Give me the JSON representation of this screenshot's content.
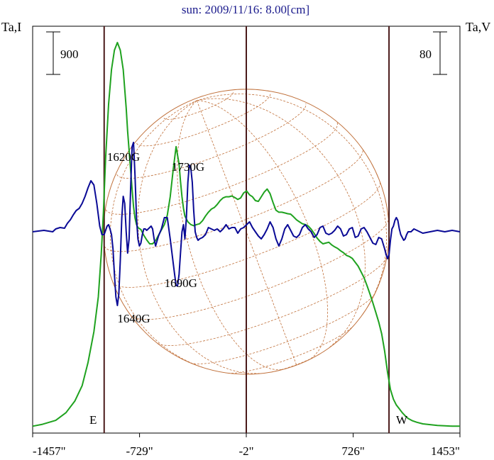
{
  "chart_data": {
    "type": "line",
    "title": "sun: 2009/11/16: 8.00[cm]",
    "ylabel_left": "Ta,I",
    "ylabel_right": "Ta,V",
    "scale_left": "900",
    "scale_right": "80",
    "limb_labels": [
      "E",
      "W"
    ],
    "xlim": [
      -1457,
      1453
    ],
    "x_ticks": [
      {
        "value": -1457,
        "label": "-1457\""
      },
      {
        "value": -729,
        "label": "-729\""
      },
      {
        "value": -2,
        "label": "-2\""
      },
      {
        "value": 726,
        "label": "726\""
      },
      {
        "value": 1453,
        "label": "1453\""
      }
    ],
    "limb_lines": [
      -970,
      -2,
      970
    ],
    "annotations": [
      {
        "text": "1620G",
        "x": -950,
        "y_value": 0.5
      },
      {
        "text": "1730G",
        "x": -510,
        "y_value": 0.43
      },
      {
        "text": "1690G",
        "x": -560,
        "y_value": -0.39
      },
      {
        "text": "1640G",
        "x": -880,
        "y_value": -0.64
      }
    ],
    "series": [
      {
        "name": "I",
        "color": "#1fa21f",
        "x": [
          -1457,
          -1390,
          -1300,
          -1230,
          -1170,
          -1120,
          -1080,
          -1040,
          -1010,
          -990,
          -975,
          -960,
          -940,
          -920,
          -900,
          -880,
          -860,
          -840,
          -820,
          -810,
          -800,
          -790,
          -780,
          -770,
          -760,
          -750,
          -740,
          -720,
          -700,
          -680,
          -660,
          -640,
          -620,
          -600,
          -580,
          -560,
          -540,
          -520,
          -500,
          -480,
          -460,
          -450,
          -440,
          -430,
          -420,
          -400,
          -380,
          -360,
          -340,
          -320,
          -300,
          -280,
          -260,
          -240,
          -220,
          -200,
          -180,
          -160,
          -140,
          -120,
          -100,
          -80,
          -60,
          -40,
          -20,
          0,
          20,
          40,
          60,
          80,
          100,
          120,
          140,
          160,
          180,
          200,
          220,
          240,
          260,
          280,
          300,
          320,
          340,
          360,
          380,
          400,
          420,
          440,
          460,
          480,
          500,
          520,
          540,
          560,
          580,
          600,
          620,
          640,
          660,
          680,
          700,
          720,
          740,
          760,
          780,
          800,
          820,
          840,
          860,
          880,
          900,
          920,
          940,
          960,
          980,
          1000,
          1020,
          1040,
          1060,
          1080,
          1100,
          1130,
          1160,
          1200,
          1250,
          1300,
          1350,
          1400,
          1453
        ],
        "values": [
          0.005,
          0.01,
          0.02,
          0.04,
          0.07,
          0.11,
          0.17,
          0.25,
          0.34,
          0.45,
          0.56,
          0.7,
          0.84,
          0.93,
          0.98,
          1.0,
          0.98,
          0.93,
          0.83,
          0.77,
          0.72,
          0.67,
          0.62,
          0.575,
          0.545,
          0.528,
          0.52,
          0.515,
          0.5,
          0.488,
          0.478,
          0.478,
          0.486,
          0.5,
          0.514,
          0.528,
          0.552,
          0.6,
          0.67,
          0.73,
          0.685,
          0.64,
          0.6,
          0.57,
          0.55,
          0.535,
          0.528,
          0.525,
          0.528,
          0.53,
          0.538,
          0.55,
          0.56,
          0.568,
          0.572,
          0.58,
          0.59,
          0.597,
          0.6,
          0.6,
          0.602,
          0.598,
          0.593,
          0.597,
          0.61,
          0.615,
          0.605,
          0.6,
          0.59,
          0.588,
          0.6,
          0.612,
          0.62,
          0.608,
          0.585,
          0.565,
          0.56,
          0.56,
          0.558,
          0.556,
          0.555,
          0.548,
          0.54,
          0.535,
          0.53,
          0.528,
          0.524,
          0.516,
          0.505,
          0.493,
          0.484,
          0.478,
          0.48,
          0.482,
          0.475,
          0.47,
          0.466,
          0.46,
          0.455,
          0.448,
          0.445,
          0.44,
          0.43,
          0.42,
          0.405,
          0.39,
          0.37,
          0.348,
          0.325,
          0.3,
          0.275,
          0.245,
          0.2,
          0.145,
          0.1,
          0.075,
          0.06,
          0.05,
          0.04,
          0.032,
          0.025,
          0.019,
          0.015,
          0.011,
          0.009,
          0.007,
          0.006,
          0.005,
          0.005
        ]
      },
      {
        "name": "V",
        "color": "#0a0a96",
        "x": [
          -1457,
          -1380,
          -1320,
          -1300,
          -1270,
          -1240,
          -1220,
          -1200,
          -1180,
          -1160,
          -1140,
          -1120,
          -1100,
          -1080,
          -1060,
          -1040,
          -1020,
          -1000,
          -985,
          -970,
          -960,
          -950,
          -940,
          -930,
          -920,
          -910,
          -900,
          -890,
          -880,
          -870,
          -860,
          -850,
          -840,
          -830,
          -820,
          -810,
          -800,
          -790,
          -780,
          -770,
          -760,
          -750,
          -740,
          -730,
          -720,
          -710,
          -700,
          -690,
          -680,
          -670,
          -660,
          -650,
          -640,
          -630,
          -620,
          -600,
          -580,
          -560,
          -540,
          -520,
          -500,
          -490,
          -480,
          -470,
          -460,
          -450,
          -440,
          -430,
          -420,
          -410,
          -400,
          -390,
          -380,
          -370,
          -360,
          -350,
          -340,
          -330,
          -320,
          -300,
          -280,
          -260,
          -240,
          -220,
          -200,
          -180,
          -160,
          -140,
          -120,
          -100,
          -80,
          -60,
          -40,
          -20,
          0,
          20,
          40,
          60,
          80,
          100,
          120,
          140,
          160,
          180,
          200,
          220,
          240,
          260,
          280,
          300,
          320,
          340,
          360,
          380,
          400,
          420,
          440,
          460,
          480,
          500,
          520,
          540,
          560,
          580,
          600,
          620,
          640,
          660,
          680,
          700,
          720,
          740,
          760,
          780,
          800,
          820,
          840,
          860,
          880,
          900,
          920,
          940,
          950,
          960,
          970,
          980,
          990,
          1000,
          1010,
          1020,
          1030,
          1040,
          1050,
          1060,
          1070,
          1080,
          1090,
          1100,
          1120,
          1140,
          1160,
          1180,
          1200,
          1250,
          1300,
          1350,
          1400,
          1453
        ],
        "values": [
          0.0,
          0.01,
          0.0,
          0.02,
          0.03,
          0.025,
          0.06,
          0.085,
          0.12,
          0.15,
          0.165,
          0.2,
          0.25,
          0.31,
          0.36,
          0.33,
          0.2,
          0.04,
          -0.02,
          -0.02,
          0.01,
          0.04,
          0.05,
          0.02,
          -0.02,
          -0.12,
          -0.3,
          -0.46,
          -0.52,
          -0.44,
          -0.2,
          0.1,
          0.25,
          0.2,
          0.0,
          -0.15,
          -0.05,
          0.3,
          0.6,
          0.63,
          0.4,
          0.1,
          -0.05,
          -0.1,
          -0.08,
          -0.02,
          0.02,
          0.02,
          0.01,
          0.02,
          0.03,
          0.04,
          0.02,
          -0.05,
          -0.1,
          -0.03,
          0.02,
          0.1,
          0.1,
          -0.05,
          -0.22,
          -0.3,
          -0.38,
          -0.38,
          -0.3,
          -0.15,
          0.0,
          0.05,
          -0.05,
          0.1,
          0.35,
          0.47,
          0.45,
          0.35,
          0.15,
          0.0,
          -0.04,
          -0.06,
          -0.05,
          -0.04,
          -0.02,
          0.03,
          0.02,
          0.01,
          0.02,
          0.0,
          0.02,
          0.05,
          0.02,
          0.03,
          0.03,
          -0.01,
          0.02,
          0.03,
          0.05,
          0.07,
          0.03,
          0.0,
          -0.03,
          -0.05,
          -0.02,
          0.02,
          0.07,
          0.03,
          -0.05,
          -0.1,
          -0.05,
          0.02,
          0.05,
          0.01,
          -0.03,
          -0.04,
          -0.02,
          0.03,
          0.05,
          0.02,
          0.0,
          -0.04,
          -0.02,
          0.03,
          0.04,
          -0.01,
          -0.02,
          -0.01,
          0.01,
          0.04,
          0.02,
          -0.03,
          -0.02,
          0.02,
          0.03,
          -0.04,
          -0.03,
          0.02,
          0.03,
          0.0,
          -0.04,
          -0.08,
          -0.09,
          -0.04,
          -0.05,
          -0.12,
          -0.16,
          -0.19,
          -0.16,
          -0.06,
          0.02,
          0.04,
          0.08,
          0.1,
          0.08,
          0.02,
          -0.02,
          -0.04,
          -0.06,
          -0.05,
          -0.02,
          0.0,
          0.0,
          0.02,
          0.01,
          0.0,
          -0.01,
          0.0,
          0.01,
          0.0,
          0.01,
          0.0
        ]
      }
    ]
  }
}
